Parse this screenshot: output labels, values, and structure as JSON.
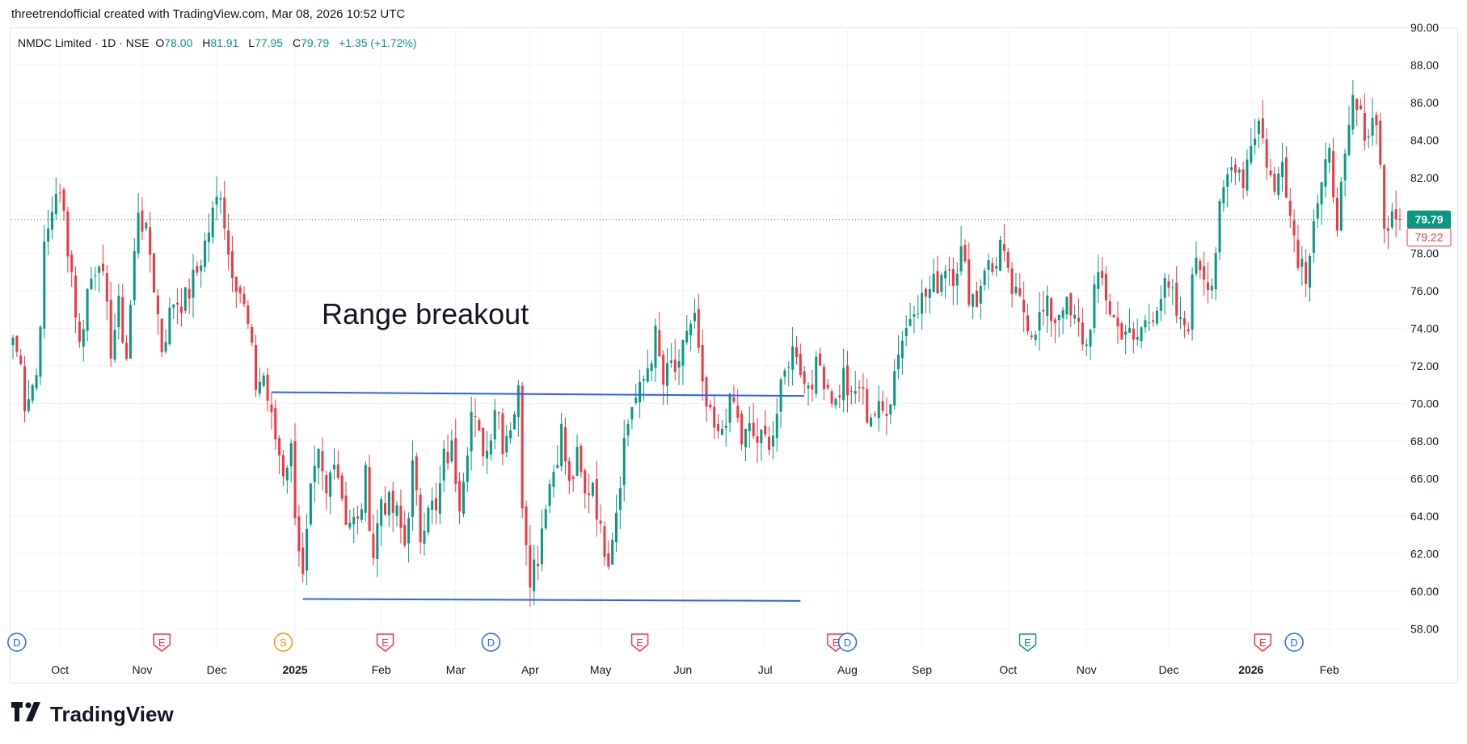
{
  "header": {
    "attribution": "threetrendofficial created with TradingView.com, Mar 08, 2026 10:52 UTC"
  },
  "legend": {
    "symbol": "NMDC Limited · 1D · NSE",
    "open_label": "O",
    "open": "78.00",
    "high_label": "H",
    "high": "81.91",
    "low_label": "L",
    "low": "77.95",
    "close_label": "C",
    "close": "79.79",
    "change": "+1.35 (+1.72%)"
  },
  "annotation": "Range breakout",
  "footer": {
    "brand": "TradingView"
  },
  "colors": {
    "up": "#089981",
    "down": "#f23645",
    "trendline": "#2962ff",
    "grid": "#f0f3fa"
  },
  "chart_data": {
    "type": "candlestick",
    "y_axis": {
      "min": 57,
      "max": 90,
      "ticks": [
        "58.00",
        "60.00",
        "62.00",
        "64.00",
        "66.00",
        "68.00",
        "70.00",
        "72.00",
        "74.00",
        "76.00",
        "78.00",
        "80.00",
        "82.00",
        "84.00",
        "86.00",
        "88.00",
        "90.00"
      ]
    },
    "x_ticks": [
      {
        "label": "Oct",
        "index": 12,
        "bold": false
      },
      {
        "label": "Nov",
        "index": 33,
        "bold": false
      },
      {
        "label": "Dec",
        "index": 52,
        "bold": false
      },
      {
        "label": "2025",
        "index": 72,
        "bold": true
      },
      {
        "label": "Feb",
        "index": 94,
        "bold": false
      },
      {
        "label": "Mar",
        "index": 113,
        "bold": false
      },
      {
        "label": "Apr",
        "index": 132,
        "bold": false
      },
      {
        "label": "May",
        "index": 150,
        "bold": false
      },
      {
        "label": "Jun",
        "index": 171,
        "bold": false
      },
      {
        "label": "Jul",
        "index": 192,
        "bold": false
      },
      {
        "label": "Aug",
        "index": 213,
        "bold": false
      },
      {
        "label": "Sep",
        "index": 232,
        "bold": false
      },
      {
        "label": "Oct",
        "index": 254,
        "bold": false
      },
      {
        "label": "Nov",
        "index": 274,
        "bold": false
      },
      {
        "label": "Dec",
        "index": 295,
        "bold": false
      },
      {
        "label": "2026",
        "index": 316,
        "bold": true
      },
      {
        "label": "Feb",
        "index": 336,
        "bold": false
      }
    ],
    "anchors": [
      [
        0,
        73.5
      ],
      [
        2,
        72
      ],
      [
        3,
        70.2
      ],
      [
        6,
        71.5
      ],
      [
        8,
        78
      ],
      [
        11,
        81.5
      ],
      [
        13,
        80
      ],
      [
        15,
        77
      ],
      [
        17,
        73
      ],
      [
        19,
        76
      ],
      [
        22,
        78
      ],
      [
        25,
        73
      ],
      [
        27,
        75
      ],
      [
        29,
        72.5
      ],
      [
        32,
        80.5
      ],
      [
        35,
        78
      ],
      [
        38,
        73
      ],
      [
        41,
        75.5
      ],
      [
        44,
        75.5
      ],
      [
        47,
        77
      ],
      [
        51,
        80
      ],
      [
        53,
        81.5
      ],
      [
        55,
        78
      ],
      [
        58,
        76
      ],
      [
        60,
        74
      ],
      [
        62,
        71
      ],
      [
        64,
        71.5
      ],
      [
        66,
        69
      ],
      [
        69,
        66.5
      ],
      [
        71,
        67.5
      ],
      [
        72,
        64.5
      ],
      [
        74,
        60.5
      ],
      [
        76,
        65
      ],
      [
        78,
        67
      ],
      [
        80,
        65
      ],
      [
        82,
        67.5
      ],
      [
        85,
        64
      ],
      [
        88,
        63.5
      ],
      [
        90,
        66
      ],
      [
        92,
        62
      ],
      [
        94,
        65
      ],
      [
        96,
        64.5
      ],
      [
        98,
        64
      ],
      [
        100,
        62.5
      ],
      [
        102,
        66.5
      ],
      [
        104,
        63
      ],
      [
        106,
        65
      ],
      [
        108,
        64
      ],
      [
        110,
        67
      ],
      [
        112,
        67.5
      ],
      [
        114,
        65
      ],
      [
        117,
        69.5
      ],
      [
        119,
        68
      ],
      [
        121,
        67.5
      ],
      [
        123,
        70
      ],
      [
        124,
        69.5
      ],
      [
        125,
        68
      ],
      [
        127,
        69
      ],
      [
        129,
        70.5
      ],
      [
        130,
        65
      ],
      [
        132,
        61
      ],
      [
        134,
        62
      ],
      [
        136,
        65
      ],
      [
        138,
        66.5
      ],
      [
        140,
        68.5
      ],
      [
        142,
        65.5
      ],
      [
        144,
        67
      ],
      [
        146,
        65
      ],
      [
        148,
        66
      ],
      [
        150,
        63
      ],
      [
        152,
        62
      ],
      [
        154,
        64.5
      ],
      [
        156,
        68
      ],
      [
        158,
        70
      ],
      [
        160,
        70.5
      ],
      [
        162,
        72
      ],
      [
        164,
        73.5
      ],
      [
        166,
        71
      ],
      [
        168,
        72
      ],
      [
        170,
        71.5
      ],
      [
        172,
        74
      ],
      [
        174,
        74.5
      ],
      [
        176,
        70.5
      ],
      [
        178,
        69
      ],
      [
        180,
        68
      ],
      [
        182,
        69.5
      ],
      [
        184,
        70
      ],
      [
        186,
        68
      ],
      [
        188,
        68.5
      ],
      [
        190,
        68
      ],
      [
        192,
        68
      ],
      [
        194,
        68.5
      ],
      [
        196,
        70.5
      ],
      [
        198,
        72.5
      ],
      [
        200,
        73
      ],
      [
        202,
        71
      ],
      [
        204,
        71.5
      ],
      [
        206,
        72
      ],
      [
        208,
        71
      ],
      [
        210,
        70
      ],
      [
        212,
        71.5
      ],
      [
        214,
        70
      ],
      [
        216,
        71
      ],
      [
        218,
        69.5
      ],
      [
        220,
        69.5
      ],
      [
        222,
        69.5
      ],
      [
        224,
        70.5
      ],
      [
        226,
        73
      ],
      [
        228,
        74
      ],
      [
        230,
        75.5
      ],
      [
        232,
        75.5
      ],
      [
        234,
        76
      ],
      [
        236,
        76.5
      ],
      [
        238,
        77.5
      ],
      [
        240,
        77
      ],
      [
        242,
        78
      ],
      [
        244,
        76
      ],
      [
        246,
        75.5
      ],
      [
        248,
        77.5
      ],
      [
        250,
        77
      ],
      [
        252,
        78.5
      ],
      [
        254,
        76.5
      ],
      [
        256,
        75.5
      ],
      [
        258,
        75
      ],
      [
        260,
        74
      ],
      [
        262,
        74.5
      ],
      [
        264,
        75
      ],
      [
        266,
        74.5
      ],
      [
        268,
        75.5
      ],
      [
        270,
        74.5
      ],
      [
        272,
        74
      ],
      [
        274,
        73
      ],
      [
        276,
        76
      ],
      [
        278,
        76.5
      ],
      [
        280,
        75
      ],
      [
        282,
        74
      ],
      [
        284,
        74
      ],
      [
        286,
        73
      ],
      [
        288,
        74
      ],
      [
        290,
        74.5
      ],
      [
        292,
        75.5
      ],
      [
        294,
        76
      ],
      [
        296,
        75.5
      ],
      [
        298,
        74
      ],
      [
        300,
        74.5
      ],
      [
        302,
        78
      ],
      [
        304,
        77
      ],
      [
        306,
        76.5
      ],
      [
        308,
        80
      ],
      [
        310,
        82
      ],
      [
        312,
        83
      ],
      [
        314,
        82
      ],
      [
        316,
        84
      ],
      [
        318,
        85
      ],
      [
        320,
        83
      ],
      [
        322,
        81
      ],
      [
        324,
        83.5
      ],
      [
        326,
        80
      ],
      [
        328,
        78
      ],
      [
        330,
        77
      ],
      [
        332,
        80
      ],
      [
        334,
        81.5
      ],
      [
        336,
        83
      ],
      [
        338,
        80
      ],
      [
        340,
        82.5
      ],
      [
        342,
        86
      ],
      [
        344,
        85
      ],
      [
        346,
        84.5
      ],
      [
        348,
        85.5
      ],
      [
        350,
        79.5
      ],
      [
        352,
        79.5
      ],
      [
        354,
        79.79
      ]
    ],
    "last_close": 79.79,
    "price_labels": [
      "79.79",
      "79.22"
    ],
    "trendlines": [
      {
        "name": "range-top",
        "x1": 66,
        "y1": 70.6,
        "x2": 202,
        "y2": 70.4
      },
      {
        "name": "range-bottom",
        "x1": 74,
        "y1": 59.6,
        "x2": 201,
        "y2": 59.5
      }
    ],
    "event_markers": [
      {
        "letter": "D",
        "index": 1,
        "kind": "dividend"
      },
      {
        "letter": "E",
        "index": 38,
        "kind": "earnings"
      },
      {
        "letter": "S",
        "index": 69,
        "kind": "split"
      },
      {
        "letter": "E",
        "index": 95,
        "kind": "earnings"
      },
      {
        "letter": "D",
        "index": 122,
        "kind": "dividend"
      },
      {
        "letter": "E",
        "index": 160,
        "kind": "earnings"
      },
      {
        "letter": "E",
        "index": 210,
        "kind": "earnings"
      },
      {
        "letter": "D",
        "index": 213,
        "kind": "dividend"
      },
      {
        "letter": "E",
        "index": 259,
        "kind": "earnings-future"
      },
      {
        "letter": "E",
        "index": 319,
        "kind": "earnings"
      },
      {
        "letter": "D",
        "index": 327,
        "kind": "dividend"
      }
    ]
  }
}
